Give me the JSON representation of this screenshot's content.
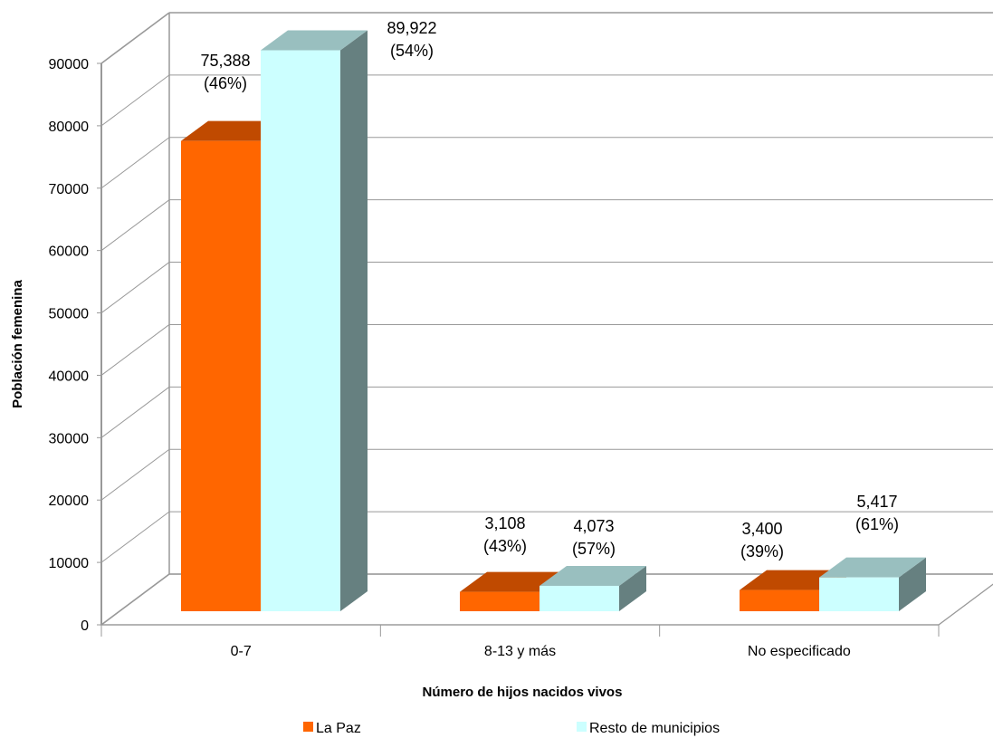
{
  "chart_data": {
    "type": "bar",
    "categories": [
      "0-7",
      "8-13 y más",
      "No especificado"
    ],
    "series": [
      {
        "name": "La Paz",
        "color": "#ff6600",
        "values": [
          75388,
          3108,
          3400
        ],
        "labels": [
          "75,388",
          "3,108",
          "3,400"
        ],
        "percents": [
          "(46%)",
          "(43%)",
          "(39%)"
        ]
      },
      {
        "name": "Resto de municipios",
        "color": "#ccffff",
        "values": [
          89922,
          4073,
          5417
        ],
        "labels": [
          "89,922",
          "4,073",
          "5,417"
        ],
        "percents": [
          "(54%)",
          "(57%)",
          "(61%)"
        ]
      }
    ],
    "xlabel": "Número de hijos nacidos vivos",
    "ylabel": "Población femenina",
    "ylim": [
      0,
      90000
    ],
    "yticks": [
      "0",
      "10000",
      "20000",
      "30000",
      "40000",
      "50000",
      "60000",
      "70000",
      "80000",
      "90000"
    ],
    "grid": true,
    "legend_position": "bottom"
  }
}
